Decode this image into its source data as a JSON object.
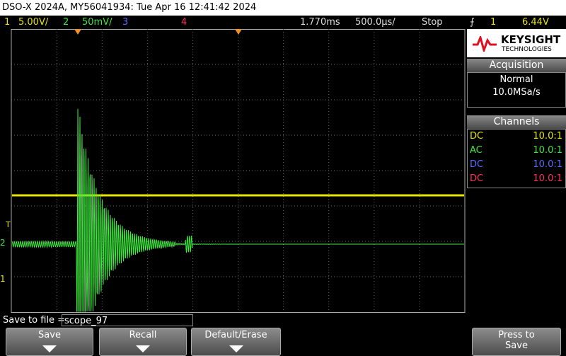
{
  "header": {
    "title": "DSO-X 2024A, MY56041934: Tue Apr 16 12:41:42 2024"
  },
  "channel_bar": {
    "ch1_label": "1",
    "ch1_scale": "5.00V/",
    "ch2_label": "2",
    "ch2_scale": "50mV/",
    "ch3_label": "3",
    "ch4_label": "4",
    "delay": "1.770ms",
    "timebase": "500.0µs/",
    "run_state": "Stop",
    "trigger_icon": "⨍",
    "trigger_source": "1",
    "trigger_level": "6.44V"
  },
  "brand": {
    "name": "KEYSIGHT",
    "sub": "TECHNOLOGIES"
  },
  "acquisition": {
    "title": "Acquisition",
    "mode": "Normal",
    "rate": "10.0MSa/s"
  },
  "channels": {
    "title": "Channels",
    "rows": [
      [
        "DC",
        "10.0:1"
      ],
      [
        "AC",
        "10.0:1"
      ],
      [
        "DC",
        "10.0:1"
      ],
      [
        "DC",
        "10.0:1"
      ]
    ]
  },
  "markers": {
    "trigger": "T",
    "ch2": "2",
    "ch1": "1"
  },
  "save": {
    "label": "Save to file =",
    "filename": "scope_97"
  },
  "softkeys": [
    "Save",
    "Recall",
    "Default/Erase",
    "Press to Save"
  ]
}
